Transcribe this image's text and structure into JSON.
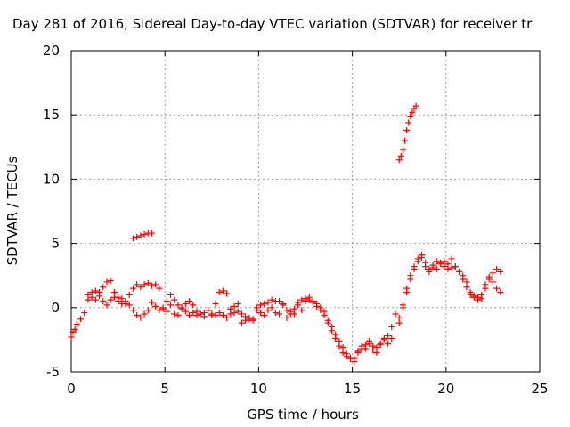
{
  "chart_data": {
    "type": "scatter",
    "title": "Day 281 of 2016, Sidereal Day-to-day VTEC variation (SDTVAR) for receiver tr",
    "xlabel": "GPS time / hours",
    "ylabel": "SDTVAR / TECUs",
    "xlim": [
      0,
      25
    ],
    "ylim": [
      -5,
      20
    ],
    "xticks": [
      0,
      5,
      10,
      15,
      20,
      25
    ],
    "yticks": [
      -5,
      0,
      5,
      10,
      15,
      20
    ],
    "grid": true,
    "marker": "plus",
    "color": "#ff0000",
    "series": [
      {
        "x": [
          0.0,
          0.1,
          0.2,
          0.3,
          0.5,
          0.7,
          0.9,
          1.1,
          1.3,
          1.5,
          1.7,
          1.9,
          2.1,
          2.3,
          2.5,
          2.7,
          2.9,
          3.1,
          3.3,
          3.5,
          3.7,
          3.9,
          4.1,
          4.3,
          4.5,
          4.7,
          4.9,
          5.1,
          5.3,
          5.5,
          5.7,
          5.9,
          6.1,
          6.3,
          6.5,
          6.7,
          6.9,
          7.1,
          7.3,
          7.5,
          7.7,
          7.9,
          8.1,
          8.3,
          8.5,
          8.7,
          8.9,
          9.1,
          9.3,
          9.5,
          9.7,
          9.9,
          10.1,
          10.3,
          10.5,
          10.7,
          10.9,
          11.1,
          11.3,
          11.5,
          11.7,
          11.9,
          12.1,
          12.3,
          12.5,
          12.7,
          12.9,
          13.1,
          13.3,
          13.5,
          13.7,
          13.9,
          14.1,
          14.3,
          14.5,
          14.7,
          14.9,
          15.1,
          15.3,
          15.5,
          15.7,
          15.9,
          16.1,
          16.3,
          16.5,
          16.7,
          16.9,
          17.1,
          17.3,
          17.5,
          17.7,
          17.9,
          18.1,
          18.3,
          18.5,
          18.7,
          18.9,
          19.1,
          19.3,
          19.5,
          19.7,
          19.9,
          20.1,
          20.3,
          20.5,
          20.7,
          20.9,
          21.1,
          21.3,
          21.5,
          21.7,
          21.9,
          22.1,
          22.3,
          22.5,
          22.7,
          22.9
        ],
        "y": [
          -2.3,
          -1.9,
          -1.7,
          -1.3,
          -0.9,
          -0.4,
          0.6,
          1.2,
          1.3,
          1.2,
          1.6,
          2.0,
          2.1,
          1.2,
          0.8,
          0.3,
          0.5,
          0.2,
          -0.2,
          -0.6,
          -0.8,
          -0.5,
          -0.2,
          0.4,
          0.1,
          -0.2,
          -0.1,
          0.5,
          1.0,
          0.6,
          0.2,
          -0.1,
          -0.3,
          -0.6,
          -0.4,
          -0.3,
          -0.5,
          -0.4,
          -0.2,
          -0.5,
          -0.6,
          -0.4,
          -0.6,
          -0.8,
          -0.5,
          -0.4,
          -0.3,
          -0.5,
          -0.7,
          -0.9,
          -1.0,
          0.0,
          0.2,
          0.3,
          0.4,
          0.6,
          0.5,
          0.5,
          0.3,
          -0.2,
          -0.5,
          -0.1,
          0.4,
          0.6,
          0.7,
          0.6,
          0.4,
          0.1,
          -0.2,
          -0.6,
          -1.2,
          -1.8,
          -2.4,
          -3.0,
          -3.5,
          -3.8,
          -4.0,
          -3.9,
          -3.5,
          -3.2,
          -2.9,
          -2.8,
          -3.0,
          -3.1,
          -2.8,
          -2.5,
          -2.2,
          -1.5,
          -0.5,
          -0.8,
          0.2,
          1.5,
          2.5,
          3.2,
          3.8,
          4.1,
          3.5,
          3.0,
          3.3,
          3.6,
          3.4,
          3.2,
          3.4,
          3.8,
          3.2,
          2.8,
          2.2,
          1.6,
          1.2,
          0.9,
          0.8,
          0.7,
          1.5,
          2.2,
          2.7,
          3.0,
          2.8
        ]
      },
      {
        "x": [
          0.9,
          1.1,
          1.3,
          1.5,
          1.7,
          1.9,
          2.1,
          2.3,
          2.5,
          2.7,
          2.9,
          3.1,
          3.3,
          3.5,
          3.7,
          3.9,
          4.1,
          4.3,
          4.5,
          4.7,
          4.9,
          5.1,
          5.3,
          5.5,
          5.7,
          5.9,
          6.1,
          6.3,
          6.5,
          6.7,
          6.9,
          7.1,
          7.3,
          7.5,
          7.7,
          7.9,
          8.1,
          8.3,
          8.5,
          8.7,
          8.9,
          9.1,
          9.3,
          9.5,
          9.7,
          9.9,
          10.1,
          10.3,
          10.5,
          10.7,
          10.9,
          11.1,
          11.3,
          11.5,
          11.7,
          11.9,
          12.1,
          12.3,
          12.5,
          12.7,
          12.9,
          13.1,
          13.3,
          13.5,
          13.7,
          13.9,
          14.1,
          14.3,
          14.5,
          14.7,
          14.9,
          15.1,
          15.3,
          15.5,
          15.7,
          15.9,
          16.1,
          16.3,
          16.5,
          16.7,
          16.9,
          17.1,
          17.5,
          17.7,
          17.9,
          18.1,
          18.3,
          18.5,
          18.7,
          18.9,
          19.1,
          19.3,
          19.5,
          19.7,
          19.9,
          20.1,
          20.3,
          20.5,
          20.7,
          20.9,
          21.1,
          21.3,
          21.5,
          21.7,
          21.9,
          22.1,
          22.3,
          22.5,
          22.7,
          22.9
        ],
        "y": [
          1.0,
          0.8,
          0.6,
          0.9,
          0.5,
          0.2,
          0.6,
          0.8,
          0.5,
          0.7,
          0.3,
          1.0,
          1.5,
          1.8,
          1.6,
          1.8,
          1.9,
          1.7,
          1.8,
          1.5,
          0.0,
          -0.3,
          0.2,
          -0.5,
          -0.6,
          0.0,
          0.3,
          0.5,
          0.2,
          -0.6,
          -0.5,
          -0.7,
          -0.2,
          -0.6,
          0.3,
          1.2,
          1.3,
          1.1,
          -0.1,
          0.1,
          0.3,
          -1.2,
          -1.0,
          -0.8,
          -0.9,
          -0.2,
          -0.4,
          -0.6,
          -0.2,
          0.0,
          -0.4,
          -0.5,
          0.2,
          -0.8,
          -0.3,
          -0.5,
          0.2,
          -0.2,
          0.5,
          0.8,
          0.5,
          0.3,
          0.0,
          -0.3,
          -1.0,
          -1.5,
          -2.1,
          -2.6,
          -3.1,
          -3.6,
          -3.9,
          -4.2,
          -3.4,
          -3.0,
          -3.2,
          -2.6,
          -3.3,
          -3.5,
          -2.9,
          -2.4,
          -2.8,
          -2.4,
          -1.2,
          0.0,
          1.2,
          2.2,
          3.0,
          3.6,
          3.9,
          3.2,
          2.8,
          3.1,
          3.0,
          3.5,
          3.6,
          3.0,
          3.1,
          3.2,
          2.8,
          2.5,
          2.0,
          1.0,
          0.8,
          0.6,
          1.0,
          1.8,
          2.4,
          2.0,
          1.5,
          1.2
        ]
      },
      {
        "x": [
          3.3,
          3.5,
          3.7,
          3.9,
          4.1,
          4.3
        ],
        "y": [
          5.4,
          5.5,
          5.6,
          5.7,
          5.8,
          5.8
        ]
      },
      {
        "x": [
          17.5,
          17.6,
          17.7,
          17.8,
          17.9,
          18.0,
          18.1,
          18.2,
          18.3,
          18.4
        ],
        "y": [
          11.5,
          11.8,
          12.3,
          13.0,
          13.8,
          14.4,
          14.9,
          15.2,
          15.5,
          15.7
        ]
      }
    ]
  }
}
